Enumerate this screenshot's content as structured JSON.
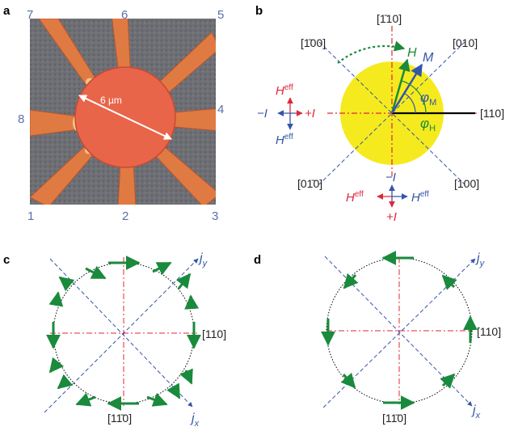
{
  "panels": {
    "a": {
      "label": "a",
      "pins": [
        "1",
        "2",
        "3",
        "4",
        "5",
        "6",
        "7",
        "8"
      ],
      "scale_text": "6 µm"
    },
    "b": {
      "label": "b",
      "directions": {
        "top": "[1̄10]",
        "upper_left": "[1̄00]",
        "upper_right": "[010]",
        "right": "[110]",
        "lower_left": "[01̄0]",
        "lower_right": "[100]"
      },
      "vectors": {
        "H": "H",
        "M": "M"
      },
      "angles": {
        "phi_M": "φ",
        "phi_M_sub": "M",
        "phi_H": "φ",
        "phi_H_sub": "H"
      },
      "left_inset": {
        "heff": "H",
        "heff_sup": "eff",
        "minus_i": "−I",
        "plus_i": "+I"
      },
      "bottom_inset": {
        "heff": "H",
        "heff_sup": "eff",
        "minus_i": "−I",
        "plus_i": "+I"
      }
    },
    "c": {
      "label": "c",
      "jy": "j",
      "jy_sub": "y",
      "jx": "j",
      "jx_sub": "x",
      "dir_right": "[110]",
      "dir_bottom": "[11̄0]"
    },
    "d": {
      "label": "d",
      "jy": "j",
      "jy_sub": "y",
      "jx": "j",
      "jx_sub": "x",
      "dir_right": "[110]",
      "dir_bottom": "[11̄0]"
    }
  },
  "colors": {
    "green": "#1a8a3c",
    "red": "#e0273a",
    "blue": "#3456a8",
    "yellow": "#f5ea1e",
    "disk": "#e8654a",
    "pin_label": "#5a6fa8"
  }
}
